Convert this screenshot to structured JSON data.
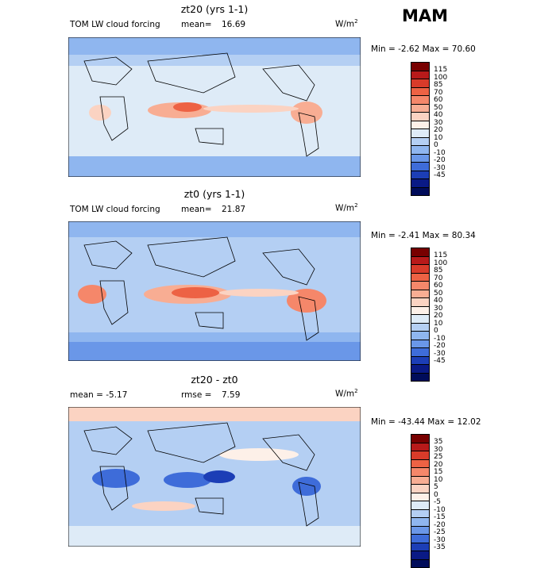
{
  "season": "MAM",
  "units": {
    "prefix": "W/m",
    "exp": "2"
  },
  "panels": [
    {
      "title": "zt20 (yrs 1-1)",
      "left_label": "TOM LW cloud forcing",
      "stat_label": "mean=",
      "stat_value": "16.69",
      "min_max": "Min =  -2.62 Max =  70.60",
      "colorbar_labels": [
        "115",
        "100",
        "85",
        "70",
        "60",
        "50",
        "40",
        "30",
        "20",
        "10",
        "0",
        "-10",
        "-20",
        "-30",
        "-45"
      ],
      "colors": [
        "#780000",
        "#b81a1a",
        "#d93b2a",
        "#ed6244",
        "#f5876a",
        "#f8ad93",
        "#fbd3c2",
        "#fdf0e8",
        "#deebf7",
        "#b4cff3",
        "#8fb6ef",
        "#6a97e8",
        "#3e6cd9",
        "#1c3eb6",
        "#0a1a85",
        "#000c5a"
      ]
    },
    {
      "title": "zt0 (yrs 1-1)",
      "left_label": "TOM LW cloud forcing",
      "stat_label": "mean=",
      "stat_value": "21.87",
      "min_max": "Min =  -2.41 Max =  80.34",
      "colorbar_labels": [
        "115",
        "100",
        "85",
        "70",
        "60",
        "50",
        "40",
        "30",
        "20",
        "10",
        "0",
        "-10",
        "-20",
        "-30",
        "-45"
      ],
      "colors": [
        "#780000",
        "#b81a1a",
        "#d93b2a",
        "#ed6244",
        "#f5876a",
        "#f8ad93",
        "#fbd3c2",
        "#fdf0e8",
        "#deebf7",
        "#b4cff3",
        "#8fb6ef",
        "#6a97e8",
        "#3e6cd9",
        "#1c3eb6",
        "#0a1a85",
        "#000c5a"
      ]
    },
    {
      "title": "zt20 - zt0",
      "left_label": "mean =   -5.17",
      "stat_label": "rmse =",
      "stat_value": "7.59",
      "min_max": "Min = -43.44 Max =  12.02",
      "colorbar_labels": [
        "35",
        "30",
        "25",
        "20",
        "15",
        "10",
        "5",
        "0",
        "-5",
        "-10",
        "-15",
        "-20",
        "-25",
        "-30",
        "-35"
      ],
      "colors": [
        "#780000",
        "#b81a1a",
        "#d93b2a",
        "#ed6244",
        "#f5876a",
        "#f8ad93",
        "#fbd3c2",
        "#fdf0e8",
        "#deebf7",
        "#b4cff3",
        "#8fb6ef",
        "#6a97e8",
        "#3e6cd9",
        "#1c3eb6",
        "#0a1a85",
        "#000c5a"
      ]
    }
  ]
}
